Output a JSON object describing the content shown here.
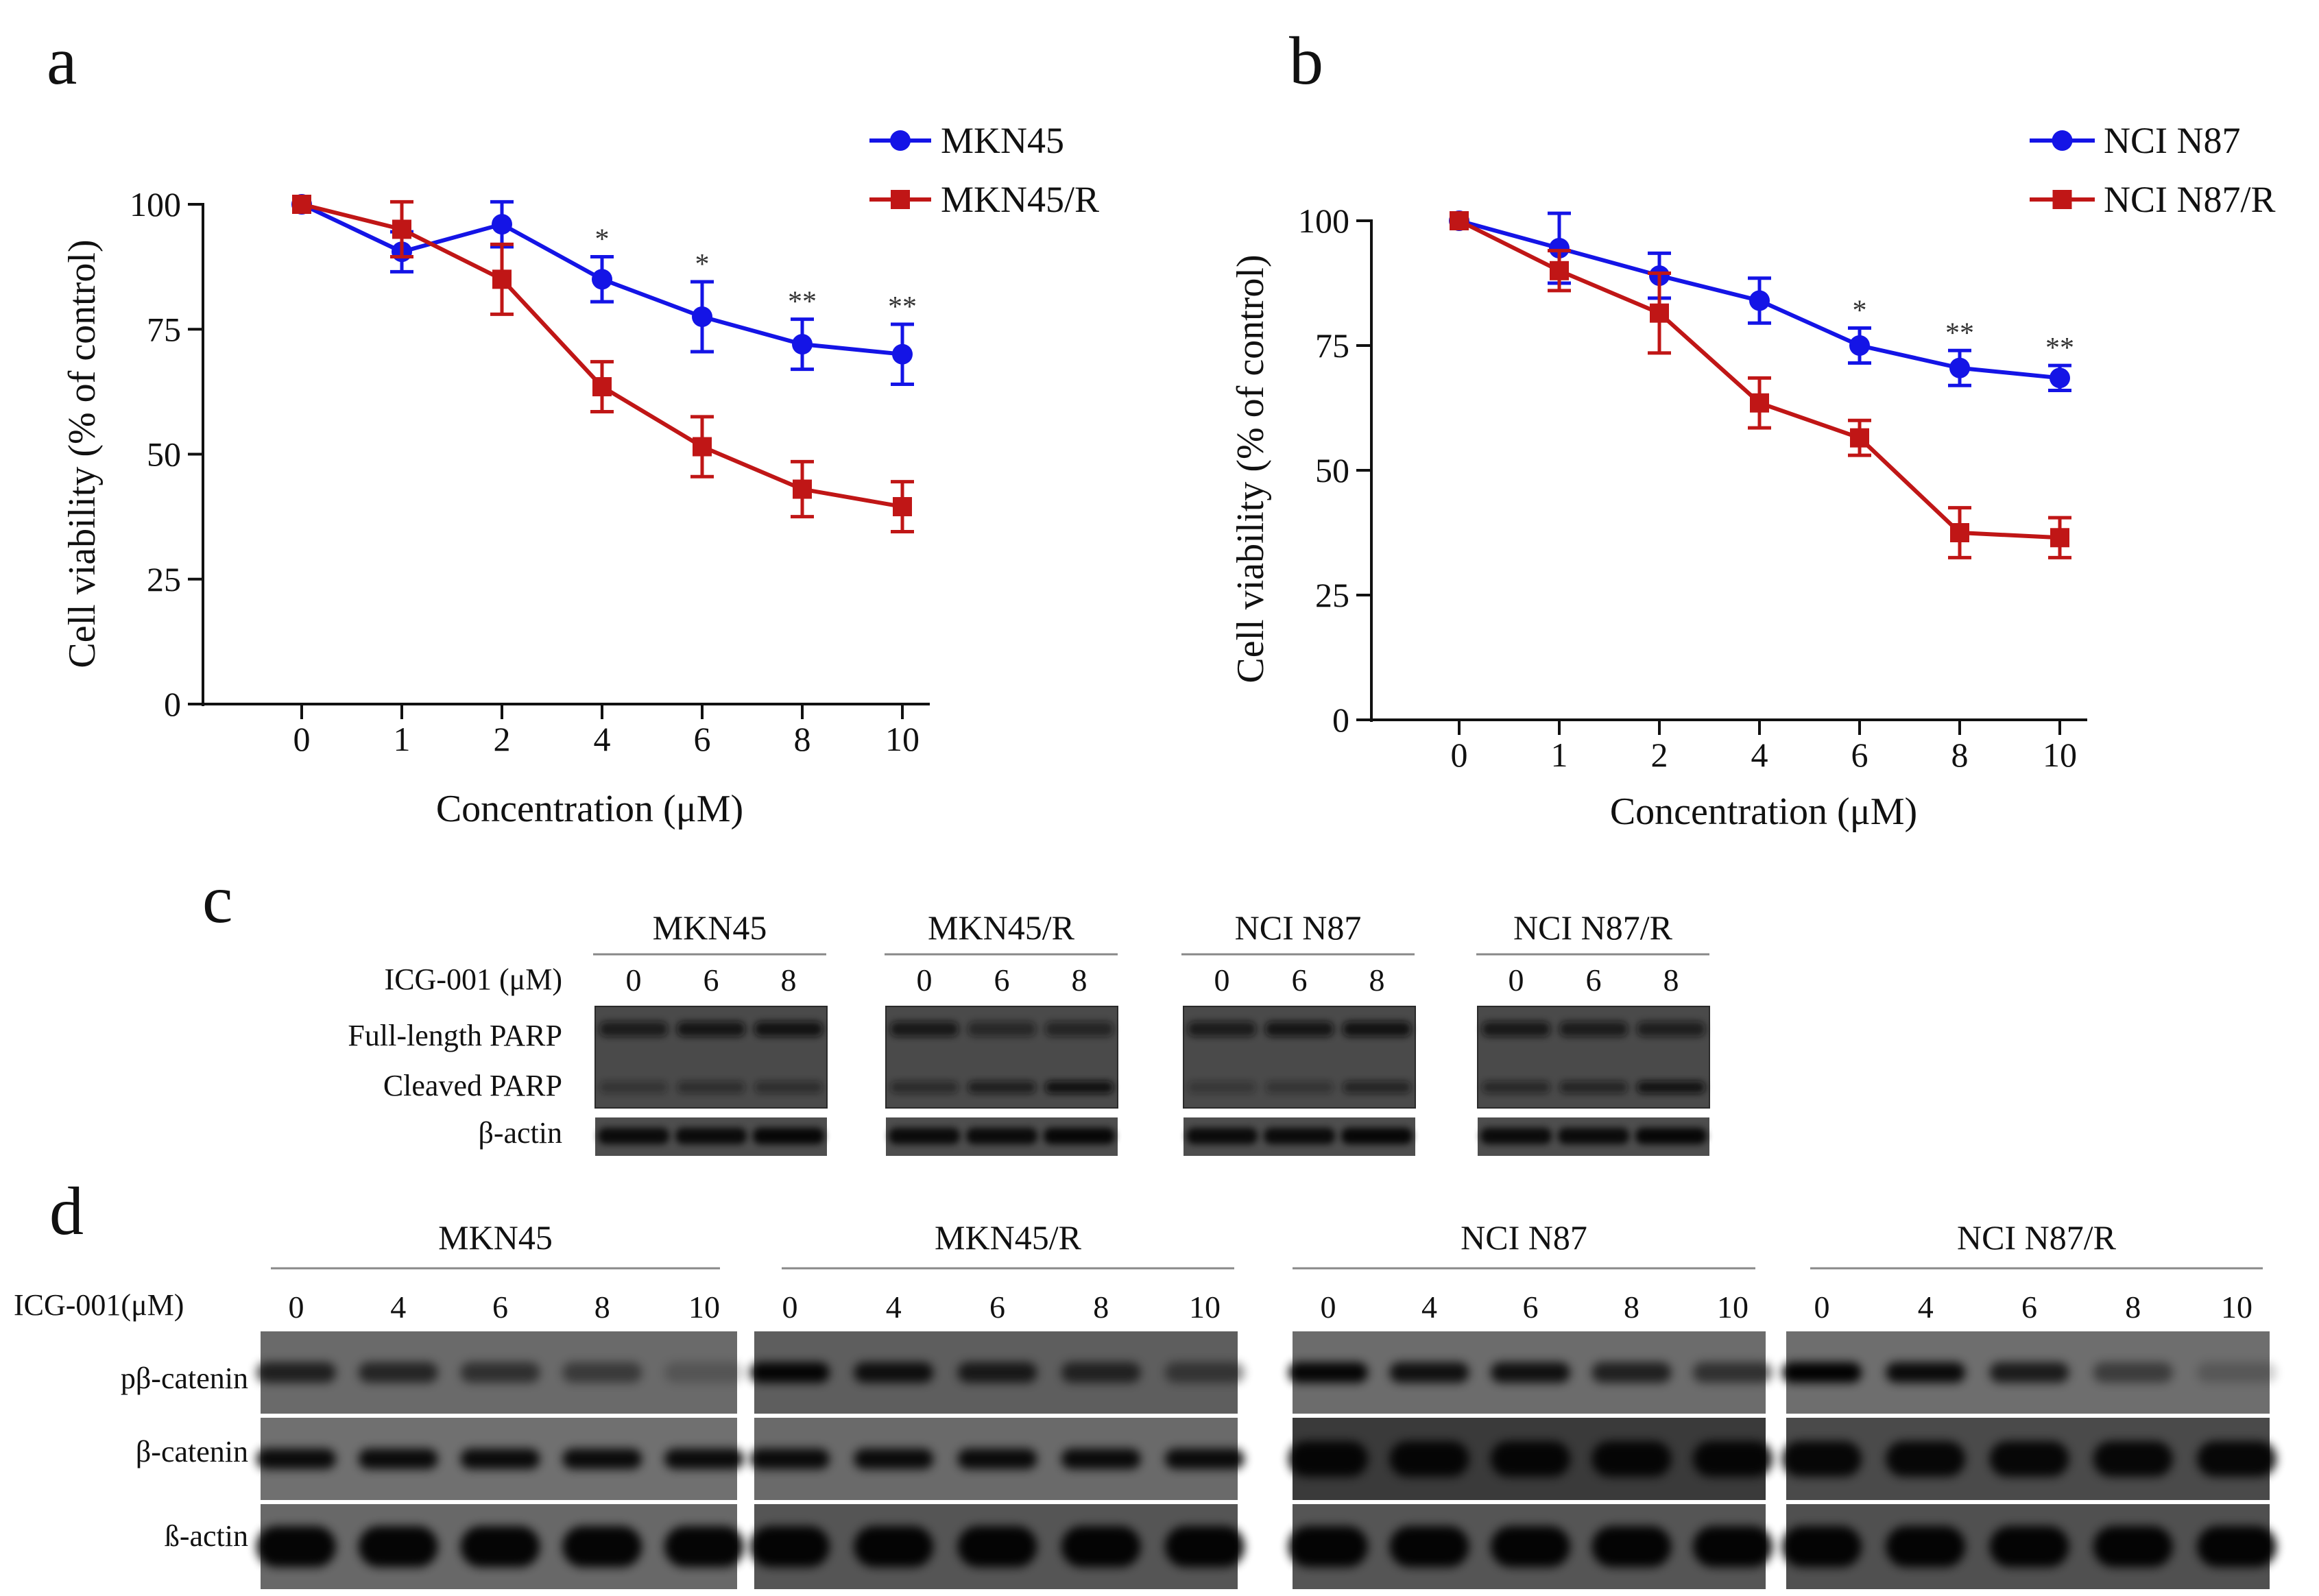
{
  "panel_letters": {
    "a": "a",
    "b": "b",
    "c": "c",
    "d": "d"
  },
  "colors": {
    "parental": "#1414e6",
    "resistant": "#c01616"
  },
  "chart_data": [
    {
      "type": "line",
      "panel": "a",
      "xlabel": "Concentration (μM)",
      "ylabel": "Cell viability (% of control)",
      "categories": [
        "0",
        "1",
        "2",
        "4",
        "6",
        "8",
        "10"
      ],
      "yticks": [
        "0",
        "25",
        "50",
        "75",
        "100"
      ],
      "ylim": [
        0,
        100
      ],
      "legend_position": "top-right",
      "series": [
        {
          "name": "MKN45",
          "marker": "circle",
          "values": [
            100,
            90.5,
            96,
            85,
            77.5,
            72,
            70
          ],
          "errors": [
            0,
            4,
            4.5,
            4.5,
            7,
            5,
            6
          ]
        },
        {
          "name": "MKN45/R",
          "marker": "square",
          "values": [
            100,
            95,
            85,
            63.5,
            51.5,
            43,
            39.5
          ],
          "errors": [
            0,
            5.5,
            7,
            5,
            6,
            5.5,
            5
          ]
        }
      ],
      "significance": [
        "",
        "",
        "",
        "*",
        "*",
        "**",
        "**"
      ]
    },
    {
      "type": "line",
      "panel": "b",
      "xlabel": "Concentration (μM)",
      "ylabel": "Cell viability (% of control)",
      "categories": [
        "0",
        "1",
        "2",
        "4",
        "6",
        "8",
        "10"
      ],
      "yticks": [
        "0",
        "25",
        "50",
        "75",
        "100"
      ],
      "ylim": [
        0,
        100
      ],
      "legend_position": "top-right",
      "series": [
        {
          "name": "NCI N87",
          "marker": "circle",
          "values": [
            100,
            94.5,
            89,
            84,
            75,
            70.5,
            68.5
          ],
          "errors": [
            0,
            7,
            4.5,
            4.5,
            3.5,
            3.5,
            2.5
          ]
        },
        {
          "name": "NCI N87/R",
          "marker": "square",
          "values": [
            100,
            90,
            81.5,
            63.5,
            56.5,
            37.5,
            36.5
          ],
          "errors": [
            0,
            4,
            8,
            5,
            3.5,
            5,
            4
          ]
        }
      ],
      "significance": [
        "",
        "",
        "",
        "",
        "*",
        "**",
        "**"
      ]
    }
  ],
  "panel_c": {
    "treatment_label": "ICG-001 (μM)",
    "lanes": [
      "0",
      "6",
      "8"
    ],
    "groups": [
      "MKN45",
      "MKN45/R",
      "NCI N87",
      "NCI N87/R"
    ],
    "rows": [
      "Full-length PARP",
      "Cleaved PARP",
      "β-actin"
    ]
  },
  "panel_d": {
    "treatment_label": "ICG-001(μM)",
    "lanes": [
      "0",
      "4",
      "6",
      "8",
      "10"
    ],
    "groups": [
      "MKN45",
      "MKN45/R",
      "NCI N87",
      "NCI N87/R"
    ],
    "rows": [
      "pβ-catenin",
      "β-catenin",
      "ß-actin"
    ]
  }
}
